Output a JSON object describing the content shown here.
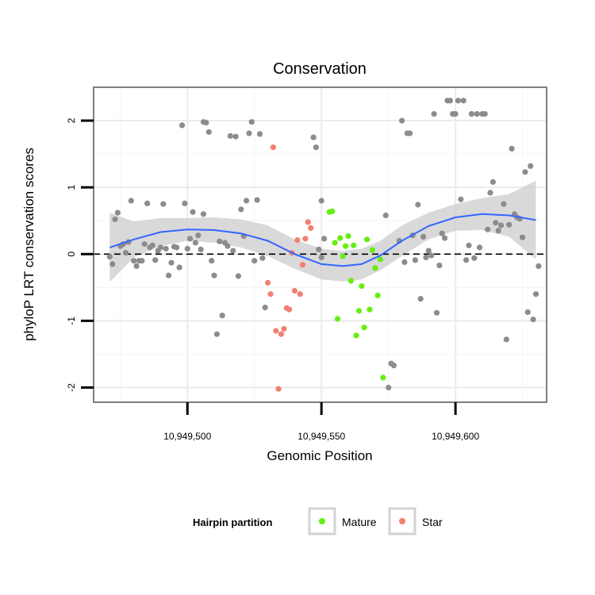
{
  "chart_data": {
    "type": "scatter",
    "title": "Conservation",
    "xlabel": "Genomic Position",
    "ylabel": "phyloP LRT conservation scores",
    "xlim": [
      10949465,
      10949634
    ],
    "ylim": [
      -2.22,
      2.5
    ],
    "x_ticks": [
      10949500,
      10949550,
      10949600
    ],
    "x_tick_labels": [
      "10,949,500",
      "10,949,550",
      "10,949,600"
    ],
    "y_ticks": [
      -2,
      -1,
      0,
      1,
      2
    ],
    "y_tick_labels": [
      "-2",
      "-1",
      "0",
      "1",
      "2"
    ],
    "reference_line": {
      "y": 0,
      "style": "dashed"
    },
    "grid": true,
    "legend": {
      "title": "Hairpin partition",
      "position": "bottom",
      "entries": [
        {
          "name": "Mature",
          "color": "#66ee11"
        },
        {
          "name": "Star",
          "color": "#f08070"
        }
      ]
    },
    "colors": {
      "other": "#8c8c8c",
      "mature": "#66ee11",
      "star": "#f08070",
      "smooth": "#3366ff",
      "band": "#cccccc"
    },
    "series": [
      {
        "key": "other",
        "points": [
          [
            10949471,
            -0.04
          ],
          [
            10949472,
            -0.15
          ],
          [
            10949473,
            0.52
          ],
          [
            10949474,
            0.62
          ],
          [
            10949475,
            0.12
          ],
          [
            10949476,
            0.15
          ],
          [
            10949477,
            0.02
          ],
          [
            10949478,
            0.18
          ],
          [
            10949479,
            0.8
          ],
          [
            10949480,
            -0.1
          ],
          [
            10949481,
            -0.18
          ],
          [
            10949482,
            -0.1
          ],
          [
            10949483,
            -0.1
          ],
          [
            10949484,
            0.15
          ],
          [
            10949485,
            0.76
          ],
          [
            10949486,
            0.1
          ],
          [
            10949487,
            0.13
          ],
          [
            10949488,
            -0.09
          ],
          [
            10949489,
            0.05
          ],
          [
            10949490,
            0.1
          ],
          [
            10949491,
            0.75
          ],
          [
            10949492,
            0.08
          ],
          [
            10949493,
            -0.32
          ],
          [
            10949494,
            -0.13
          ],
          [
            10949495,
            0.11
          ],
          [
            10949496,
            0.1
          ],
          [
            10949497,
            -0.2
          ],
          [
            10949498,
            1.93
          ],
          [
            10949499,
            0.76
          ],
          [
            10949500,
            0.08
          ],
          [
            10949501,
            0.23
          ],
          [
            10949502,
            0.63
          ],
          [
            10949503,
            0.17
          ],
          [
            10949504,
            0.28
          ],
          [
            10949505,
            0.07
          ],
          [
            10949506,
            0.6
          ],
          [
            10949506,
            1.98
          ],
          [
            10949507,
            1.97
          ],
          [
            10949508,
            1.83
          ],
          [
            10949509,
            -0.1
          ],
          [
            10949510,
            -0.32
          ],
          [
            10949511,
            -1.2
          ],
          [
            10949512,
            0.19
          ],
          [
            10949513,
            -0.92
          ],
          [
            10949514,
            0.17
          ],
          [
            10949515,
            0.12
          ],
          [
            10949516,
            1.77
          ],
          [
            10949517,
            0.05
          ],
          [
            10949518,
            1.76
          ],
          [
            10949519,
            -0.33
          ],
          [
            10949520,
            0.67
          ],
          [
            10949521,
            0.27
          ],
          [
            10949522,
            0.8
          ],
          [
            10949523,
            1.81
          ],
          [
            10949524,
            1.98
          ],
          [
            10949525,
            -0.1
          ],
          [
            10949526,
            0.81
          ],
          [
            10949527,
            1.8
          ],
          [
            10949528,
            -0.06
          ],
          [
            10949529,
            -0.8
          ],
          [
            10949547,
            1.75
          ],
          [
            10949548,
            1.6
          ],
          [
            10949549,
            0.07
          ],
          [
            10949550,
            0.8
          ],
          [
            10949550,
            -0.05
          ],
          [
            10949551,
            0.23
          ],
          [
            10949574,
            0.58
          ],
          [
            10949575,
            -2.0
          ],
          [
            10949576,
            -1.64
          ],
          [
            10949577,
            -1.67
          ],
          [
            10949579,
            0.2
          ],
          [
            10949580,
            2.0
          ],
          [
            10949581,
            -0.12
          ],
          [
            10949582,
            1.81
          ],
          [
            10949583,
            1.81
          ],
          [
            10949584,
            0.28
          ],
          [
            10949585,
            -0.09
          ],
          [
            10949586,
            0.74
          ],
          [
            10949587,
            -0.67
          ],
          [
            10949588,
            0.26
          ],
          [
            10949589,
            -0.05
          ],
          [
            10949590,
            0.05
          ],
          [
            10949591,
            -0.02
          ],
          [
            10949592,
            2.1
          ],
          [
            10949593,
            -0.88
          ],
          [
            10949594,
            -0.17
          ],
          [
            10949595,
            0.31
          ],
          [
            10949596,
            0.24
          ],
          [
            10949597,
            2.3
          ],
          [
            10949598,
            2.3
          ],
          [
            10949599,
            2.1
          ],
          [
            10949600,
            2.1
          ],
          [
            10949601,
            2.3
          ],
          [
            10949602,
            0.82
          ],
          [
            10949603,
            2.3
          ],
          [
            10949604,
            -0.09
          ],
          [
            10949605,
            0.13
          ],
          [
            10949606,
            2.1
          ],
          [
            10949607,
            -0.06
          ],
          [
            10949608,
            2.1
          ],
          [
            10949609,
            0.1
          ],
          [
            10949610,
            2.1
          ],
          [
            10949611,
            2.1
          ],
          [
            10949612,
            0.37
          ],
          [
            10949613,
            0.92
          ],
          [
            10949614,
            1.08
          ],
          [
            10949615,
            0.47
          ],
          [
            10949616,
            0.35
          ],
          [
            10949617,
            0.43
          ],
          [
            10949618,
            0.75
          ],
          [
            10949619,
            -1.28
          ],
          [
            10949620,
            0.44
          ],
          [
            10949621,
            1.58
          ],
          [
            10949622,
            0.6
          ],
          [
            10949623,
            0.55
          ],
          [
            10949624,
            0.53
          ],
          [
            10949625,
            0.25
          ],
          [
            10949626,
            1.23
          ],
          [
            10949627,
            -0.87
          ],
          [
            10949628,
            1.32
          ],
          [
            10949629,
            -0.98
          ],
          [
            10949630,
            -0.6
          ],
          [
            10949631,
            -0.18
          ]
        ]
      },
      {
        "key": "star",
        "name": "Star",
        "points": [
          [
            10949530,
            -0.43
          ],
          [
            10949531,
            -0.6
          ],
          [
            10949532,
            1.6
          ],
          [
            10949533,
            -1.15
          ],
          [
            10949534,
            -2.02
          ],
          [
            10949535,
            -1.2
          ],
          [
            10949536,
            -1.12
          ],
          [
            10949537,
            -0.81
          ],
          [
            10949538,
            -0.83
          ],
          [
            10949539,
            0.02
          ],
          [
            10949540,
            -0.55
          ],
          [
            10949541,
            0.21
          ],
          [
            10949542,
            -0.6
          ],
          [
            10949543,
            -0.16
          ],
          [
            10949544,
            0.23
          ],
          [
            10949545,
            0.48
          ],
          [
            10949546,
            0.39
          ]
        ]
      },
      {
        "key": "mature",
        "name": "Mature",
        "points": [
          [
            10949553,
            0.63
          ],
          [
            10949554,
            0.64
          ],
          [
            10949555,
            0.17
          ],
          [
            10949556,
            -0.97
          ],
          [
            10949557,
            0.24
          ],
          [
            10949558,
            -0.03
          ],
          [
            10949559,
            0.12
          ],
          [
            10949560,
            0.27
          ],
          [
            10949561,
            -0.4
          ],
          [
            10949562,
            0.13
          ],
          [
            10949563,
            -1.22
          ],
          [
            10949564,
            -0.85
          ],
          [
            10949565,
            -0.48
          ],
          [
            10949566,
            -1.1
          ],
          [
            10949567,
            0.22
          ],
          [
            10949568,
            -0.83
          ],
          [
            10949569,
            0.06
          ],
          [
            10949570,
            -0.21
          ],
          [
            10949571,
            -0.62
          ],
          [
            10949572,
            -0.08
          ],
          [
            10949573,
            -1.85
          ]
        ]
      }
    ],
    "smooth": {
      "x": [
        10949471,
        10949480,
        10949490,
        10949500,
        10949510,
        10949520,
        10949530,
        10949540,
        10949550,
        10949558,
        10949565,
        10949572,
        10949580,
        10949590,
        10949600,
        10949610,
        10949620,
        10949630
      ],
      "y": [
        0.1,
        0.22,
        0.33,
        0.37,
        0.36,
        0.31,
        0.2,
        0.0,
        -0.15,
        -0.18,
        -0.15,
        -0.02,
        0.2,
        0.42,
        0.55,
        0.6,
        0.58,
        0.51
      ],
      "lower": [
        -0.42,
        -0.05,
        0.12,
        0.2,
        0.17,
        0.1,
        -0.03,
        -0.22,
        -0.38,
        -0.41,
        -0.38,
        -0.24,
        -0.03,
        0.22,
        0.35,
        0.36,
        0.26,
        -0.08
      ],
      "upper": [
        0.62,
        0.49,
        0.54,
        0.54,
        0.55,
        0.52,
        0.43,
        0.22,
        0.08,
        0.05,
        0.08,
        0.2,
        0.43,
        0.62,
        0.75,
        0.84,
        0.9,
        1.1
      ]
    }
  }
}
